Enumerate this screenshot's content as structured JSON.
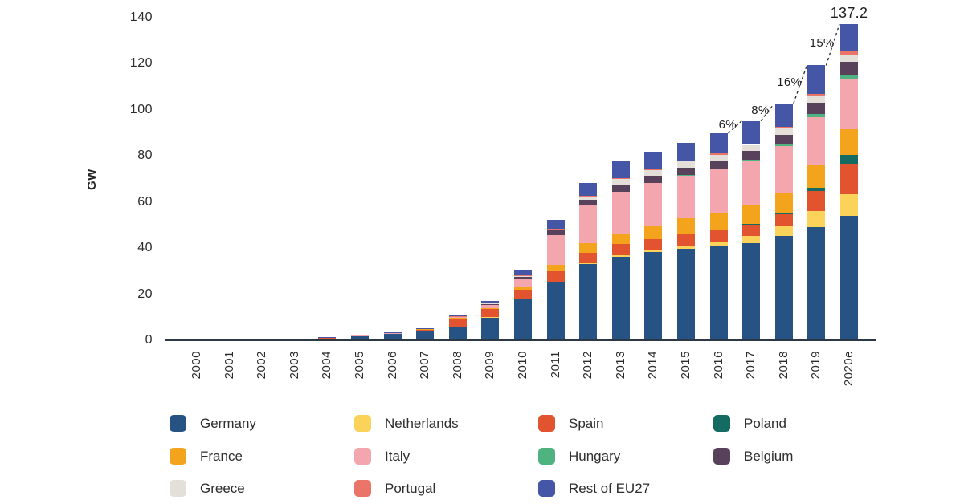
{
  "chart_data": {
    "type": "bar",
    "stacked": true,
    "title": "",
    "xlabel": "",
    "ylabel": "GW",
    "ylim": [
      0,
      140
    ],
    "yticks": [
      0,
      20,
      40,
      60,
      80,
      100,
      120,
      140
    ],
    "grid": "off",
    "categories": [
      "2000",
      "2001",
      "2002",
      "2003",
      "2004",
      "2005",
      "2006",
      "2007",
      "2008",
      "2009",
      "2010",
      "2011",
      "2012",
      "2013",
      "2014",
      "2015",
      "2016",
      "2017",
      "2018",
      "2019",
      "2020e"
    ],
    "series": [
      {
        "name": "Germany",
        "color": "#275384",
        "values": [
          0.1,
          0.2,
          0.3,
          0.45,
          1.1,
          2.0,
          2.9,
          4.2,
          6.0,
          10.0,
          17.9,
          25.4,
          33.0,
          36.3,
          38.2,
          39.7,
          40.7,
          42.3,
          45.2,
          49.0,
          53.9
        ]
      },
      {
        "name": "Netherlands",
        "color": "#FBD25A",
        "values": [
          0,
          0,
          0,
          0,
          0,
          0,
          0,
          0,
          0.05,
          0.1,
          0.1,
          0.15,
          0.4,
          0.7,
          1.0,
          1.5,
          2.1,
          2.9,
          4.5,
          6.9,
          9.5
        ]
      },
      {
        "name": "Spain",
        "color": "#E2542F",
        "values": [
          0,
          0.05,
          0.05,
          0.05,
          0.1,
          0.1,
          0.2,
          0.7,
          3.5,
          3.6,
          3.9,
          4.3,
          4.6,
          4.7,
          4.8,
          4.9,
          4.9,
          4.9,
          5.0,
          8.8,
          13.3
        ]
      },
      {
        "name": "Poland",
        "color": "#136B61",
        "values": [
          0,
          0,
          0,
          0,
          0,
          0,
          0,
          0,
          0,
          0,
          0,
          0,
          0,
          0,
          0,
          0.1,
          0.2,
          0.3,
          0.5,
          1.5,
          3.9
        ]
      },
      {
        "name": "France",
        "color": "#F3A31C",
        "values": [
          0,
          0,
          0,
          0,
          0.05,
          0.05,
          0.05,
          0.1,
          0.15,
          0.35,
          1.2,
          2.9,
          4.0,
          4.7,
          5.7,
          6.6,
          7.2,
          8.0,
          8.9,
          9.9,
          10.9
        ]
      },
      {
        "name": "Italy",
        "color": "#F3A6AE",
        "values": [
          0,
          0.05,
          0.05,
          0.05,
          0.05,
          0.1,
          0.1,
          0.15,
          0.5,
          1.2,
          3.5,
          12.8,
          16.4,
          18.1,
          18.6,
          18.9,
          19.3,
          19.7,
          20.1,
          20.8,
          21.7
        ]
      },
      {
        "name": "Hungary",
        "color": "#4EB381",
        "values": [
          0,
          0,
          0,
          0,
          0,
          0,
          0,
          0,
          0,
          0,
          0,
          0,
          0,
          0,
          0,
          0.1,
          0.2,
          0.3,
          0.7,
          1.4,
          2.0
        ]
      },
      {
        "name": "Belgium",
        "color": "#58415A",
        "values": [
          0,
          0,
          0,
          0,
          0,
          0,
          0,
          0.05,
          0.2,
          0.8,
          1.1,
          2.0,
          2.6,
          2.9,
          3.1,
          3.2,
          3.4,
          3.8,
          4.3,
          4.8,
          5.6
        ]
      },
      {
        "name": "Greece",
        "color": "#E4DFD8",
        "values": [
          0,
          0,
          0,
          0,
          0,
          0,
          0,
          0,
          0.05,
          0.1,
          0.2,
          0.6,
          1.5,
          2.6,
          2.6,
          2.6,
          2.6,
          2.6,
          2.7,
          2.8,
          3.3
        ]
      },
      {
        "name": "Portugal",
        "color": "#EA7467",
        "values": [
          0,
          0,
          0,
          0,
          0,
          0,
          0,
          0.05,
          0.1,
          0.15,
          0.15,
          0.2,
          0.25,
          0.3,
          0.4,
          0.45,
          0.5,
          0.6,
          0.7,
          0.9,
          1.1
        ]
      },
      {
        "name": "Rest of EU27",
        "color": "#4556A7",
        "values": [
          0.1,
          0.05,
          0.1,
          0.15,
          0.1,
          0.05,
          0.15,
          0.05,
          0.45,
          0.7,
          2.55,
          3.95,
          5.5,
          7.2,
          7.5,
          7.65,
          8.7,
          9.8,
          10.2,
          12.5,
          12.0
        ]
      }
    ],
    "total_label": {
      "category": "2020e",
      "value": "137.2"
    },
    "growth_annotations": [
      {
        "from": "2016",
        "to": "2017",
        "label": "6%"
      },
      {
        "from": "2017",
        "to": "2018",
        "label": "8%"
      },
      {
        "from": "2018",
        "to": "2019",
        "label": "16%"
      },
      {
        "from": "2019",
        "to": "2020e",
        "label": "15%"
      }
    ],
    "legend": {
      "position": "bottom",
      "columns": [
        [
          "Germany",
          "France",
          "Greece"
        ],
        [
          "Netherlands",
          "Italy",
          "Portugal"
        ],
        [
          "Spain",
          "Hungary",
          "Rest of EU27"
        ],
        [
          "Poland",
          "Belgium"
        ]
      ]
    }
  }
}
